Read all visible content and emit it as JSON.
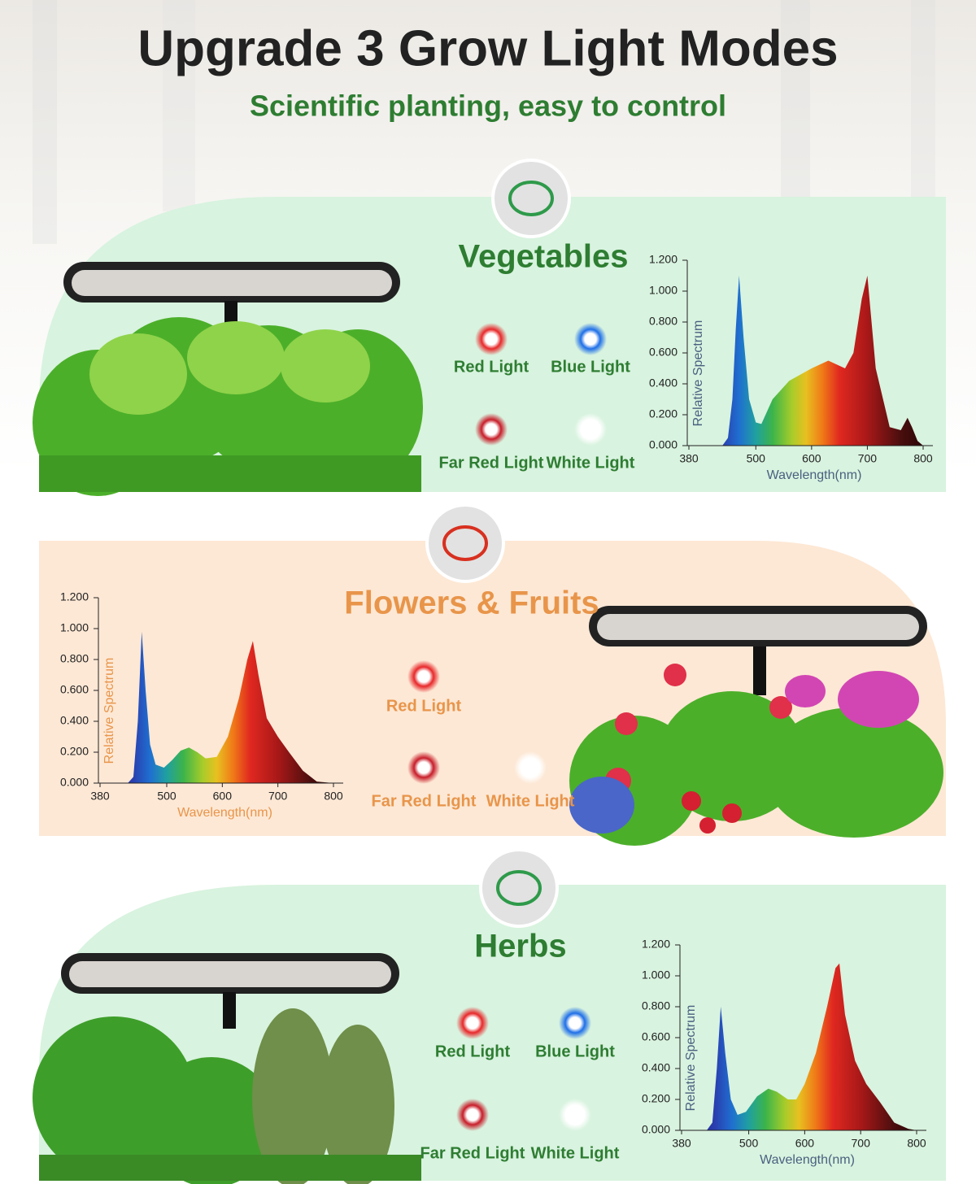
{
  "header": {
    "title": "Upgrade 3 Grow Light Modes",
    "subtitle": "Scientific planting, easy to control"
  },
  "sections": [
    {
      "title": "Vegetables",
      "color": "#2e7d32",
      "lights": [
        {
          "label": "Red Light",
          "color": "#e8282a"
        },
        {
          "label": "Blue Light",
          "color": "#1f6fe8"
        },
        {
          "label": "Far Red Light",
          "color": "#c81e2a"
        },
        {
          "label": "White Light",
          "color": "#ffffff"
        }
      ]
    },
    {
      "title": "Flowers & Fruits",
      "color": "#e8954a",
      "lights": [
        {
          "label": "Red Light",
          "color": "#e8282a"
        },
        {
          "label": "Far Red Light",
          "color": "#c81e2a"
        },
        {
          "label": "White Light",
          "color": "#ffffff"
        }
      ]
    },
    {
      "title": "Herbs",
      "color": "#2e7d32",
      "lights": [
        {
          "label": "Red Light",
          "color": "#e8282a"
        },
        {
          "label": "Blue Light",
          "color": "#1f6fe8"
        },
        {
          "label": "Far Red Light",
          "color": "#c81e2a"
        },
        {
          "label": "White Light",
          "color": "#ffffff"
        }
      ]
    }
  ],
  "chart_data": [
    {
      "type": "area",
      "xlabel": "Wavelength(nm)",
      "ylabel": "Relative Spectrum",
      "label_color": "#4a6080",
      "x": [
        380,
        440,
        450,
        458,
        464,
        470,
        478,
        488,
        500,
        510,
        530,
        560,
        600,
        630,
        660,
        675,
        690,
        700,
        715,
        740,
        760,
        772,
        780,
        790,
        800
      ],
      "values": [
        0,
        0,
        0.05,
        0.3,
        0.75,
        1.1,
        0.7,
        0.3,
        0.15,
        0.14,
        0.3,
        0.42,
        0.5,
        0.55,
        0.5,
        0.6,
        0.95,
        1.1,
        0.5,
        0.12,
        0.1,
        0.18,
        0.12,
        0.03,
        0
      ],
      "xlim": [
        380,
        800
      ],
      "xticks": [
        380,
        500,
        600,
        700,
        800
      ],
      "ylim": [
        0,
        1.2
      ],
      "yticks": [
        {
          "value": 0,
          "label": "0.000"
        },
        {
          "value": 0.2,
          "label": "0.200"
        },
        {
          "value": 0.4,
          "label": "0.400"
        },
        {
          "value": 0.6,
          "label": "0.600"
        },
        {
          "value": 0.8,
          "label": "0.800"
        },
        {
          "value": 1,
          "label": "1.000"
        },
        {
          "value": 1.2,
          "label": "1.200"
        }
      ]
    },
    {
      "type": "area",
      "xlabel": "Wavelength(nm)",
      "ylabel": "Relative Spectrum",
      "label_color": "#e8954a",
      "x": [
        380,
        430,
        440,
        448,
        455,
        462,
        470,
        480,
        495,
        510,
        525,
        540,
        555,
        570,
        590,
        610,
        630,
        645,
        655,
        665,
        680,
        700,
        720,
        745,
        770,
        800
      ],
      "values": [
        0,
        0,
        0.04,
        0.4,
        0.98,
        0.6,
        0.25,
        0.12,
        0.1,
        0.15,
        0.21,
        0.23,
        0.2,
        0.16,
        0.17,
        0.3,
        0.55,
        0.8,
        0.92,
        0.7,
        0.42,
        0.3,
        0.2,
        0.08,
        0.01,
        0
      ],
      "xlim": [
        380,
        800
      ],
      "xticks": [
        380,
        500,
        600,
        700,
        800
      ],
      "ylim": [
        0,
        1.2
      ],
      "yticks": [
        {
          "value": 0,
          "label": "0.000"
        },
        {
          "value": 0.2,
          "label": "0.200"
        },
        {
          "value": 0.4,
          "label": "0.400"
        },
        {
          "value": 0.6,
          "label": "0.600"
        },
        {
          "value": 0.8,
          "label": "0.800"
        },
        {
          "value": 1,
          "label": "1.000"
        },
        {
          "value": 1.2,
          "label": "1.200"
        }
      ]
    },
    {
      "type": "area",
      "xlabel": "Wavelength(nm)",
      "ylabel": "Relative Spectrum",
      "label_color": "#4a6080",
      "x": [
        380,
        425,
        435,
        443,
        450,
        458,
        468,
        480,
        495,
        515,
        535,
        550,
        570,
        585,
        600,
        620,
        640,
        655,
        662,
        672,
        690,
        710,
        735,
        760,
        785,
        800
      ],
      "values": [
        0,
        0,
        0.05,
        0.4,
        0.8,
        0.5,
        0.2,
        0.1,
        0.12,
        0.22,
        0.27,
        0.25,
        0.2,
        0.2,
        0.3,
        0.5,
        0.8,
        1.05,
        1.08,
        0.75,
        0.45,
        0.3,
        0.18,
        0.05,
        0.01,
        0
      ],
      "xlim": [
        380,
        800
      ],
      "xticks": [
        380,
        500,
        600,
        700,
        800
      ],
      "ylim": [
        0,
        1.2
      ],
      "yticks": [
        {
          "value": 0,
          "label": "0.000"
        },
        {
          "value": 0.2,
          "label": "0.200"
        },
        {
          "value": 0.4,
          "label": "0.400"
        },
        {
          "value": 0.6,
          "label": "0.600"
        },
        {
          "value": 0.8,
          "label": "0.800"
        },
        {
          "value": 1,
          "label": "1.000"
        },
        {
          "value": 1.2,
          "label": "1.200"
        }
      ]
    }
  ]
}
